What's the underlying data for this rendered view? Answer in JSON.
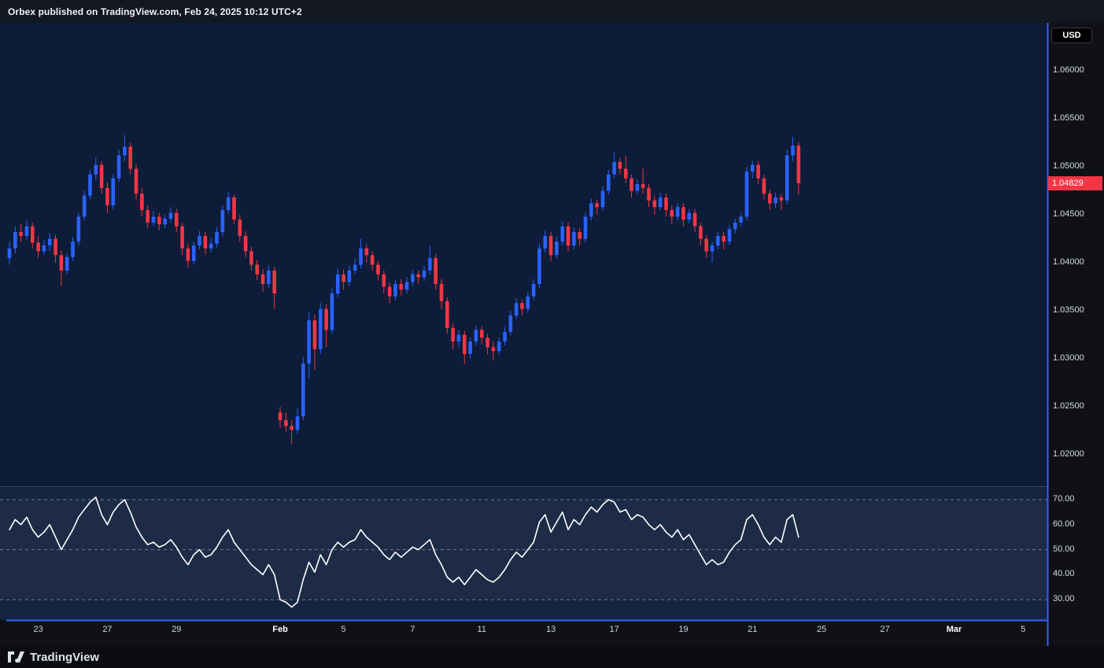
{
  "header": {
    "attribution": "Orbex published on TradingView.com, Feb 24, 2025 10:12 UTC+2"
  },
  "footer": {
    "brand": "TradingView"
  },
  "colors": {
    "up": "#2962ff",
    "down": "#f23645",
    "frame": "#2962ff",
    "last_badge": "#f23645",
    "rsi_line": "#ffffff",
    "pane_bg": "#0d1c38",
    "rsi_pane_bg": "#152441",
    "axis_bg": "#0f1117"
  },
  "price_scale": {
    "currency": "USD",
    "last_price": "1.04829",
    "last_price_value": 1.04829,
    "ticks": [
      {
        "label": "1.06000",
        "value": 1.06
      },
      {
        "label": "1.05500",
        "value": 1.055
      },
      {
        "label": "1.05000",
        "value": 1.05
      },
      {
        "label": "1.04500",
        "value": 1.045
      },
      {
        "label": "1.04000",
        "value": 1.04
      },
      {
        "label": "1.03500",
        "value": 1.035
      },
      {
        "label": "1.03000",
        "value": 1.03
      },
      {
        "label": "1.02500",
        "value": 1.025
      },
      {
        "label": "1.02000",
        "value": 1.02
      }
    ]
  },
  "rsi_scale": {
    "ticks": [
      {
        "label": "70.00",
        "value": 70
      },
      {
        "label": "60.00",
        "value": 60
      },
      {
        "label": "50.00",
        "value": 50
      },
      {
        "label": "40.00",
        "value": 40
      },
      {
        "label": "30.00",
        "value": 30
      }
    ],
    "guides": [
      70,
      50,
      30
    ]
  },
  "time_axis": {
    "ticks": [
      {
        "label": "23",
        "index": 5,
        "major": false
      },
      {
        "label": "27",
        "index": 17,
        "major": false
      },
      {
        "label": "29",
        "index": 29,
        "major": false
      },
      {
        "label": "Feb",
        "index": 47,
        "major": true
      },
      {
        "label": "5",
        "index": 58,
        "major": false
      },
      {
        "label": "7",
        "index": 70,
        "major": false
      },
      {
        "label": "11",
        "index": 82,
        "major": false
      },
      {
        "label": "13",
        "index": 94,
        "major": false
      },
      {
        "label": "17",
        "index": 105,
        "major": false
      },
      {
        "label": "19",
        "index": 117,
        "major": false
      },
      {
        "label": "21",
        "index": 129,
        "major": false
      },
      {
        "label": "25",
        "index": 141,
        "major": false
      },
      {
        "label": "27",
        "index": 152,
        "major": false
      },
      {
        "label": "Mar",
        "index": 164,
        "major": true
      },
      {
        "label": "5",
        "index": 176,
        "major": false
      }
    ]
  },
  "chart_data": {
    "type": "candlestick",
    "subpanel_type": "line",
    "subpanel_name": "RSI",
    "price_ylim": [
      1.018,
      1.064
    ],
    "rsi_ylim": [
      22,
      74
    ],
    "grid": "dashed-rsi-guides-only",
    "up_color": "#2962ff",
    "down_color": "#f23645",
    "last_close": 1.04829,
    "candles": [
      [
        1.0405,
        1.0422,
        1.0398,
        1.0415
      ],
      [
        1.0415,
        1.0438,
        1.041,
        1.0432
      ],
      [
        1.0432,
        1.044,
        1.0422,
        1.0428
      ],
      [
        1.0428,
        1.0444,
        1.0424,
        1.0438
      ],
      [
        1.0438,
        1.0442,
        1.0415,
        1.0421
      ],
      [
        1.0421,
        1.0428,
        1.0405,
        1.0412
      ],
      [
        1.0412,
        1.0424,
        1.0408,
        1.0418
      ],
      [
        1.0418,
        1.0431,
        1.0412,
        1.0425
      ],
      [
        1.0425,
        1.0429,
        1.04,
        1.0408
      ],
      [
        1.0408,
        1.0413,
        1.0376,
        1.0392
      ],
      [
        1.0392,
        1.041,
        1.0388,
        1.0406
      ],
      [
        1.0406,
        1.0427,
        1.0402,
        1.0422
      ],
      [
        1.0422,
        1.0452,
        1.0418,
        1.0448
      ],
      [
        1.0448,
        1.0475,
        1.0444,
        1.047
      ],
      [
        1.047,
        1.0497,
        1.0466,
        1.0492
      ],
      [
        1.0492,
        1.051,
        1.0486,
        1.0502
      ],
      [
        1.0502,
        1.0506,
        1.0472,
        1.0478
      ],
      [
        1.0478,
        1.0484,
        1.0452,
        1.046
      ],
      [
        1.046,
        1.0492,
        1.0456,
        1.0488
      ],
      [
        1.0488,
        1.0518,
        1.0484,
        1.0512
      ],
      [
        1.0512,
        1.0533,
        1.0506,
        1.0521
      ],
      [
        1.0521,
        1.0525,
        1.0492,
        1.0498
      ],
      [
        1.0498,
        1.0503,
        1.0466,
        1.0472
      ],
      [
        1.0472,
        1.0478,
        1.0448,
        1.0455
      ],
      [
        1.0455,
        1.046,
        1.0436,
        1.0442
      ],
      [
        1.0442,
        1.0454,
        1.0438,
        1.0448
      ],
      [
        1.0448,
        1.0452,
        1.0434,
        1.044
      ],
      [
        1.044,
        1.045,
        1.0436,
        1.0446
      ],
      [
        1.0446,
        1.0458,
        1.0442,
        1.0452
      ],
      [
        1.0452,
        1.0456,
        1.0432,
        1.0438
      ],
      [
        1.0438,
        1.0442,
        1.0408,
        1.0415
      ],
      [
        1.0415,
        1.042,
        1.0395,
        1.0402
      ],
      [
        1.0402,
        1.0422,
        1.0398,
        1.0418
      ],
      [
        1.0418,
        1.0433,
        1.0414,
        1.0428
      ],
      [
        1.0428,
        1.0432,
        1.0409,
        1.0415
      ],
      [
        1.0415,
        1.0426,
        1.0411,
        1.042
      ],
      [
        1.042,
        1.0437,
        1.0416,
        1.0432
      ],
      [
        1.0432,
        1.046,
        1.0428,
        1.0455
      ],
      [
        1.0455,
        1.0474,
        1.0451,
        1.0468
      ],
      [
        1.0468,
        1.0471,
        1.044,
        1.0445
      ],
      [
        1.0445,
        1.045,
        1.0422,
        1.0428
      ],
      [
        1.0428,
        1.0433,
        1.0406,
        1.0412
      ],
      [
        1.0412,
        1.0417,
        1.0392,
        1.0398
      ],
      [
        1.0398,
        1.0403,
        1.0382,
        1.0388
      ],
      [
        1.0388,
        1.0393,
        1.037,
        1.0378
      ],
      [
        1.0378,
        1.0397,
        1.0374,
        1.0392
      ],
      [
        1.0392,
        1.0396,
        1.0352,
        1.0368
      ],
      [
        1.0244,
        1.025,
        1.0228,
        1.0236
      ],
      [
        1.0236,
        1.0244,
        1.0224,
        1.023
      ],
      [
        1.023,
        1.0236,
        1.0211,
        1.0226
      ],
      [
        1.0226,
        1.0248,
        1.0222,
        1.024
      ],
      [
        1.024,
        1.0302,
        1.0236,
        1.0295
      ],
      [
        1.0295,
        1.0348,
        1.028,
        1.034
      ],
      [
        1.034,
        1.0346,
        1.0288,
        1.031
      ],
      [
        1.031,
        1.0358,
        1.0305,
        1.0352
      ],
      [
        1.0352,
        1.0357,
        1.0312,
        1.033
      ],
      [
        1.033,
        1.0374,
        1.0326,
        1.0368
      ],
      [
        1.0368,
        1.0394,
        1.0364,
        1.0388
      ],
      [
        1.0388,
        1.0393,
        1.0372,
        1.038
      ],
      [
        1.038,
        1.0397,
        1.0376,
        1.0392
      ],
      [
        1.0392,
        1.0404,
        1.0388,
        1.0398
      ],
      [
        1.0398,
        1.0425,
        1.0394,
        1.0415
      ],
      [
        1.0415,
        1.0419,
        1.04,
        1.0408
      ],
      [
        1.0408,
        1.0412,
        1.0392,
        1.0398
      ],
      [
        1.0398,
        1.0402,
        1.0382,
        1.0388
      ],
      [
        1.0388,
        1.0392,
        1.0368,
        1.0375
      ],
      [
        1.0375,
        1.038,
        1.0358,
        1.0365
      ],
      [
        1.0365,
        1.0382,
        1.0361,
        1.0378
      ],
      [
        1.0378,
        1.0383,
        1.0366,
        1.0372
      ],
      [
        1.0372,
        1.0385,
        1.0368,
        1.038
      ],
      [
        1.038,
        1.0393,
        1.0376,
        1.0388
      ],
      [
        1.0388,
        1.0392,
        1.0378,
        1.0385
      ],
      [
        1.0385,
        1.0397,
        1.0381,
        1.0392
      ],
      [
        1.0392,
        1.0418,
        1.0388,
        1.0405
      ],
      [
        1.0405,
        1.0409,
        1.0372,
        1.0378
      ],
      [
        1.0378,
        1.0383,
        1.0352,
        1.036
      ],
      [
        1.036,
        1.0364,
        1.0326,
        1.0332
      ],
      [
        1.0332,
        1.0337,
        1.031,
        1.0318
      ],
      [
        1.0318,
        1.033,
        1.0312,
        1.0325
      ],
      [
        1.0325,
        1.0329,
        1.0295,
        1.0305
      ],
      [
        1.0305,
        1.0322,
        1.03,
        1.0318
      ],
      [
        1.0318,
        1.0335,
        1.0314,
        1.033
      ],
      [
        1.033,
        1.0334,
        1.0315,
        1.0322
      ],
      [
        1.0322,
        1.0326,
        1.0305,
        1.0312
      ],
      [
        1.0312,
        1.0318,
        1.0298,
        1.0308
      ],
      [
        1.0308,
        1.0322,
        1.0304,
        1.0318
      ],
      [
        1.0318,
        1.0333,
        1.0314,
        1.0328
      ],
      [
        1.0328,
        1.035,
        1.0324,
        1.0345
      ],
      [
        1.0345,
        1.0363,
        1.0341,
        1.0358
      ],
      [
        1.0358,
        1.0362,
        1.0345,
        1.0352
      ],
      [
        1.0352,
        1.037,
        1.0348,
        1.0365
      ],
      [
        1.0365,
        1.0383,
        1.0361,
        1.0378
      ],
      [
        1.0378,
        1.042,
        1.0374,
        1.0415
      ],
      [
        1.0415,
        1.0434,
        1.0411,
        1.0428
      ],
      [
        1.0428,
        1.0432,
        1.0402,
        1.0408
      ],
      [
        1.0408,
        1.0427,
        1.0404,
        1.0422
      ],
      [
        1.0422,
        1.0443,
        1.0418,
        1.0438
      ],
      [
        1.0438,
        1.0442,
        1.0412,
        1.0418
      ],
      [
        1.0418,
        1.0437,
        1.0414,
        1.0432
      ],
      [
        1.0432,
        1.0436,
        1.0418,
        1.0425
      ],
      [
        1.0425,
        1.0452,
        1.0421,
        1.0448
      ],
      [
        1.0448,
        1.0467,
        1.0444,
        1.0462
      ],
      [
        1.0462,
        1.0466,
        1.045,
        1.0458
      ],
      [
        1.0458,
        1.048,
        1.0454,
        1.0475
      ],
      [
        1.0475,
        1.0497,
        1.0471,
        1.0492
      ],
      [
        1.0492,
        1.0515,
        1.0488,
        1.0505
      ],
      [
        1.0505,
        1.0509,
        1.0492,
        1.0498
      ],
      [
        1.0498,
        1.0511,
        1.0483,
        1.0488
      ],
      [
        1.0488,
        1.0492,
        1.0468,
        1.0475
      ],
      [
        1.0475,
        1.0487,
        1.0471,
        1.0482
      ],
      [
        1.0482,
        1.0498,
        1.0472,
        1.0478
      ],
      [
        1.0478,
        1.0482,
        1.0458,
        1.0465
      ],
      [
        1.0465,
        1.047,
        1.045,
        1.0458
      ],
      [
        1.0458,
        1.0473,
        1.0454,
        1.0468
      ],
      [
        1.0468,
        1.0472,
        1.0448,
        1.0455
      ],
      [
        1.0455,
        1.046,
        1.044,
        1.0448
      ],
      [
        1.0448,
        1.0462,
        1.0444,
        1.0458
      ],
      [
        1.0458,
        1.0462,
        1.0438,
        1.0445
      ],
      [
        1.0445,
        1.0456,
        1.0441,
        1.0452
      ],
      [
        1.0452,
        1.0456,
        1.0432,
        1.0438
      ],
      [
        1.0438,
        1.0442,
        1.0418,
        1.0425
      ],
      [
        1.0425,
        1.0429,
        1.0405,
        1.0412
      ],
      [
        1.0412,
        1.0422,
        1.04,
        1.0418
      ],
      [
        1.0418,
        1.0432,
        1.0414,
        1.0428
      ],
      [
        1.0428,
        1.0432,
        1.0414,
        1.0422
      ],
      [
        1.0422,
        1.0439,
        1.0418,
        1.0435
      ],
      [
        1.0435,
        1.0446,
        1.0431,
        1.0442
      ],
      [
        1.0442,
        1.0452,
        1.0438,
        1.0448
      ],
      [
        1.0448,
        1.05,
        1.0444,
        1.0495
      ],
      [
        1.0495,
        1.0506,
        1.0488,
        1.0502
      ],
      [
        1.0502,
        1.0506,
        1.0482,
        1.0488
      ],
      [
        1.0488,
        1.0492,
        1.0466,
        1.0472
      ],
      [
        1.0472,
        1.0476,
        1.0455,
        1.0462
      ],
      [
        1.0462,
        1.0473,
        1.0457,
        1.0468
      ],
      [
        1.0468,
        1.0472,
        1.0455,
        1.0465
      ],
      [
        1.0465,
        1.0518,
        1.0461,
        1.0512
      ],
      [
        1.0512,
        1.0531,
        1.0506,
        1.0522
      ],
      [
        1.0522,
        1.0526,
        1.0471,
        1.04829
      ]
    ],
    "rsi": [
      58,
      62,
      60,
      63,
      58,
      55,
      57,
      60,
      55,
      50,
      54,
      58,
      63,
      66,
      69,
      71,
      64,
      60,
      65,
      68,
      70,
      65,
      59,
      55,
      52,
      53,
      51,
      52,
      54,
      51,
      47,
      44,
      48,
      50,
      47,
      48,
      51,
      55,
      58,
      53,
      50,
      47,
      44,
      42,
      40,
      44,
      40,
      30,
      29,
      27,
      29,
      38,
      45,
      41,
      48,
      44,
      50,
      53,
      51,
      53,
      54,
      58,
      55,
      53,
      51,
      48,
      46,
      49,
      47,
      49,
      51,
      50,
      52,
      54,
      48,
      44,
      39,
      37,
      39,
      36,
      39,
      42,
      40,
      38,
      37,
      39,
      42,
      46,
      49,
      47,
      50,
      53,
      61,
      64,
      57,
      61,
      65,
      58,
      62,
      60,
      64,
      67,
      65,
      68,
      70,
      69,
      65,
      66,
      62,
      64,
      63,
      60,
      58,
      60,
      57,
      55,
      58,
      54,
      56,
      52,
      48,
      44,
      46,
      44,
      45,
      49,
      52,
      54,
      62,
      64,
      60,
      55,
      52,
      55,
      53,
      62,
      64,
      55
    ]
  }
}
